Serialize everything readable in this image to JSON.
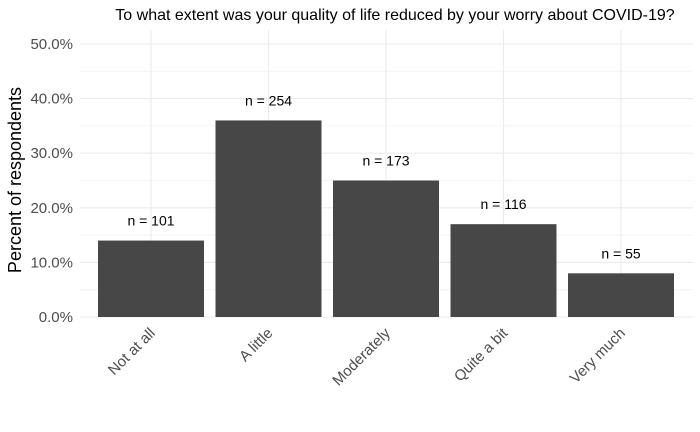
{
  "chart_data": {
    "type": "bar",
    "title": "To what extent was your quality of life reduced by your worry about COVID-19?",
    "xlabel": "",
    "ylabel": "Percent of respondents",
    "categories": [
      "Not at all",
      "A little",
      "Moderately",
      "Quite a bit",
      "Very much"
    ],
    "values": [
      0.14,
      0.36,
      0.25,
      0.17,
      0.08
    ],
    "data_labels": [
      "n = 101",
      "n = 254",
      "n = 173",
      "n = 116",
      "n = 55"
    ],
    "ylim": [
      0,
      0.5
    ],
    "yticks": [
      0,
      0.1,
      0.2,
      0.3,
      0.4,
      0.5
    ],
    "ytick_labels": [
      "0.0%",
      "10.0%",
      "20.0%",
      "30.0%",
      "40.0%",
      "50.0%"
    ],
    "grid": true,
    "bar_color": "#474747",
    "grid_major_color": "#ebebeb",
    "grid_minor_color": "#f4f4f4"
  }
}
